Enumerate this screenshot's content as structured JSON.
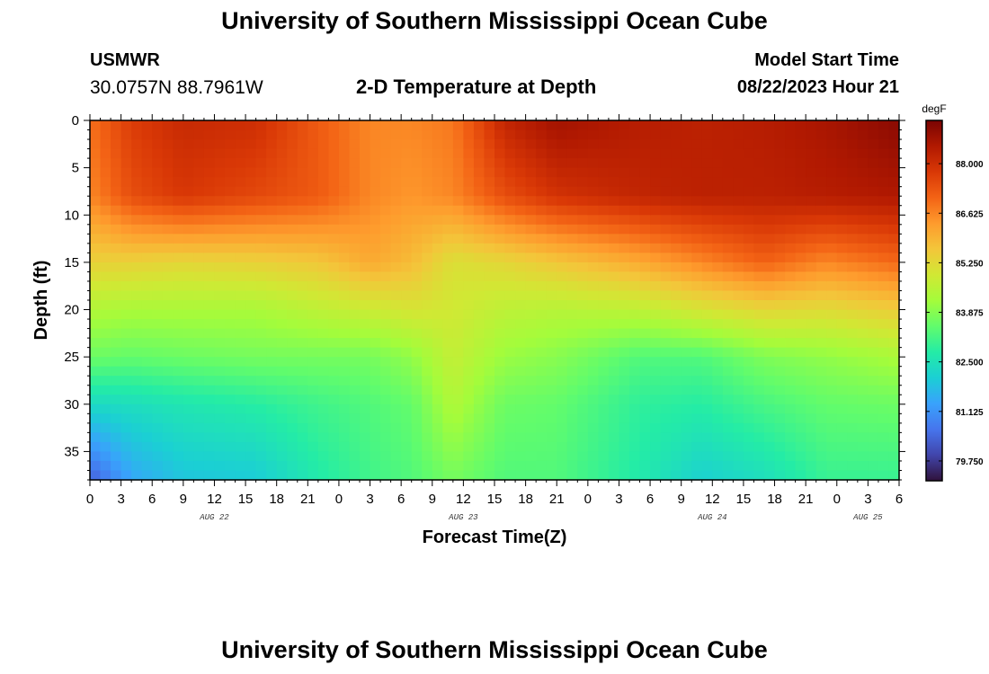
{
  "header": {
    "title": "University of Southern Mississippi Ocean Cube",
    "station_id": "USMWR",
    "coords": "30.0757N  88.7961W",
    "subtitle": "2-D Temperature at Depth",
    "model_start_label": "Model Start Time",
    "model_start_value": "08/22/2023 Hour 21"
  },
  "footer": {
    "title": "University of Southern Mississippi Ocean Cube"
  },
  "chart_data": {
    "type": "heatmap",
    "title": "2-D Temperature at Depth",
    "xlabel": "Forecast Time(Z)",
    "ylabel": "Depth (ft)",
    "x_unit": "hours since 08/22 00Z",
    "xlim": [
      0,
      78
    ],
    "ylim": [
      0,
      38
    ],
    "x_ticks": [
      0,
      3,
      6,
      9,
      12,
      15,
      18,
      21,
      24,
      27,
      30,
      33,
      36,
      39,
      42,
      45,
      48,
      51,
      54,
      57,
      60,
      63,
      66,
      69,
      72,
      75,
      78
    ],
    "x_tick_labels": [
      "0",
      "3",
      "6",
      "9",
      "12",
      "15",
      "18",
      "21",
      "0",
      "3",
      "6",
      "9",
      "12",
      "15",
      "18",
      "21",
      "0",
      "3",
      "6",
      "9",
      "12",
      "15",
      "18",
      "21",
      "0",
      "3",
      "6"
    ],
    "y_ticks": [
      0,
      5,
      10,
      15,
      20,
      25,
      30,
      35
    ],
    "y_tick_labels": [
      "0",
      "5",
      "10",
      "15",
      "20",
      "25",
      "30",
      "35"
    ],
    "date_labels": [
      {
        "text": "AUG 22",
        "x": 12
      },
      {
        "text": "AUG 23",
        "x": 36
      },
      {
        "text": "AUG 24",
        "x": 60
      },
      {
        "text": "AUG 25",
        "x": 75
      }
    ],
    "colorbar": {
      "unit": "degF",
      "min": 79.2,
      "max": 89.2,
      "ticks": [
        88.0,
        86.625,
        85.25,
        83.875,
        82.5,
        81.125,
        79.75
      ],
      "tick_labels": [
        "88.000",
        "86.625",
        "85.250",
        "83.875",
        "82.500",
        "81.125",
        "79.750"
      ],
      "colors": [
        "#30123b",
        "#4145ab",
        "#4675ed",
        "#39a2fc",
        "#1bcfd4",
        "#24eca6",
        "#61fc6c",
        "#a4fc3b",
        "#d1e834",
        "#f3c63a",
        "#fe9b2d",
        "#f36315",
        "#d93806",
        "#b11901",
        "#7a0403"
      ]
    },
    "depth_profiles": [
      {
        "time": 0,
        "depths": [
          0,
          8,
          15,
          20,
          25,
          30,
          38
        ],
        "temps": [
          86.9,
          86.6,
          85.4,
          84.4,
          83.6,
          82.3,
          80.3
        ]
      },
      {
        "time": 4,
        "depths": [
          0,
          8,
          15,
          20,
          25,
          30,
          38
        ],
        "temps": [
          87.7,
          87.4,
          85.4,
          84.3,
          83.5,
          82.4,
          81.4
        ]
      },
      {
        "time": 9,
        "depths": [
          0,
          8,
          15,
          20,
          25,
          30,
          38
        ],
        "temps": [
          88.1,
          87.8,
          85.3,
          84.3,
          83.6,
          82.6,
          81.9
        ]
      },
      {
        "time": 16,
        "depths": [
          0,
          8,
          15,
          20,
          25,
          30,
          38
        ],
        "temps": [
          88.0,
          87.5,
          85.4,
          84.3,
          83.7,
          82.8,
          82.0
        ]
      },
      {
        "time": 22,
        "depths": [
          0,
          8,
          15,
          20,
          25,
          30,
          38
        ],
        "temps": [
          87.2,
          87.2,
          85.6,
          84.6,
          83.7,
          83.1,
          82.7
        ]
      },
      {
        "time": 27,
        "depths": [
          0,
          8,
          15,
          20,
          25,
          30,
          38
        ],
        "temps": [
          86.6,
          86.6,
          86.1,
          84.8,
          83.7,
          83.3,
          83.1
        ]
      },
      {
        "time": 31,
        "depths": [
          0,
          8,
          15,
          20,
          25,
          30,
          38
        ],
        "temps": [
          86.6,
          86.4,
          85.8,
          85.0,
          84.0,
          83.5,
          83.3
        ]
      },
      {
        "time": 35,
        "depths": [
          0,
          8,
          15,
          20,
          25,
          30,
          38
        ],
        "temps": [
          86.8,
          86.6,
          85.1,
          84.9,
          84.7,
          84.4,
          83.7
        ]
      },
      {
        "time": 40,
        "depths": [
          0,
          8,
          15,
          20,
          25,
          30,
          38
        ],
        "temps": [
          88.2,
          87.4,
          85.3,
          84.6,
          84.1,
          83.6,
          83.3
        ]
      },
      {
        "time": 45,
        "depths": [
          0,
          8,
          15,
          20,
          25,
          30,
          38
        ],
        "temps": [
          88.7,
          87.9,
          85.6,
          84.5,
          83.9,
          83.5,
          83.3
        ]
      },
      {
        "time": 53,
        "depths": [
          0,
          8,
          15,
          20,
          25,
          30,
          38
        ],
        "temps": [
          88.4,
          88.2,
          86.1,
          84.6,
          83.3,
          82.9,
          82.7
        ]
      },
      {
        "time": 59,
        "depths": [
          0,
          8,
          15,
          20,
          25,
          30,
          38
        ],
        "temps": [
          88.3,
          88.3,
          86.6,
          85.0,
          83.3,
          82.8,
          82.1
        ]
      },
      {
        "time": 65,
        "depths": [
          0,
          8,
          15,
          20,
          25,
          30,
          38
        ],
        "temps": [
          88.4,
          88.3,
          87.1,
          85.3,
          83.8,
          83.2,
          82.4
        ]
      },
      {
        "time": 71,
        "depths": [
          0,
          8,
          15,
          20,
          25,
          30,
          38
        ],
        "temps": [
          88.6,
          88.4,
          86.6,
          85.2,
          84.0,
          83.5,
          83.0
        ]
      },
      {
        "time": 78,
        "depths": [
          0,
          8,
          15,
          20,
          25,
          30,
          38
        ],
        "temps": [
          89.0,
          88.5,
          87.0,
          85.5,
          84.3,
          83.6,
          83.0
        ]
      }
    ]
  }
}
